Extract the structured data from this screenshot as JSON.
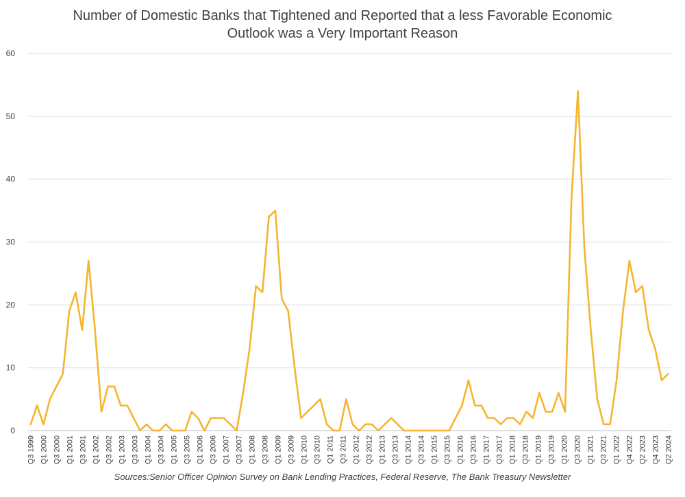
{
  "chart_data": {
    "type": "line",
    "title_line1": "Number of Domestic Banks that Tightened and Reported that a less Favorable Economic",
    "title_line2": "Outlook was a Very Important Reason",
    "source": "Sources:Senior Officer Opinion Survey on Bank Lending Practices, Federal Reserve, The Bank Treasury Newsletter",
    "ylim": [
      0,
      60
    ],
    "yticks": [
      0,
      10,
      20,
      30,
      40,
      50,
      60
    ],
    "grid": true,
    "series_color": "#F5B52E",
    "grid_color": "#d9d9d9",
    "xtick_labels": [
      "Q3 1999",
      "Q1 2000",
      "Q3 2000",
      "Q1 2001",
      "Q3 2001",
      "Q1 2002",
      "Q3 2002",
      "Q1 2003",
      "Q3 2003",
      "Q1 2004",
      "Q3 2004",
      "Q1 2005",
      "Q3 2005",
      "Q1 2006",
      "Q3 2006",
      "Q1 2007",
      "Q3 2007",
      "Q1 2008",
      "Q3 2008",
      "Q1 2009",
      "Q3 2009",
      "Q1 2010",
      "Q3 2010",
      "Q1 2011",
      "Q3 2011",
      "Q1 2012",
      "Q3 2012",
      "Q1 2013",
      "Q3 2013",
      "Q1 2014",
      "Q3 2014",
      "Q1 2015",
      "Q3 2015",
      "Q1 2016",
      "Q3 2016",
      "Q1 2017",
      "Q3 2017",
      "Q1 2018",
      "Q3 2018",
      "Q1 2019",
      "Q3 2019",
      "Q1 2020",
      "Q3 2020",
      "Q1 2021",
      "Q3 2021",
      "Q1 2022",
      "Q4 2022",
      "Q2 2023",
      "Q4 2023",
      "Q2 2024"
    ],
    "values": [
      1,
      4,
      1,
      5,
      7,
      9,
      19,
      22,
      16,
      27,
      16,
      3,
      7,
      7,
      4,
      4,
      2,
      0,
      1,
      0,
      0,
      1,
      0,
      0,
      0,
      3,
      2,
      0,
      2,
      2,
      2,
      1,
      0,
      6,
      13,
      23,
      22,
      34,
      35,
      21,
      19,
      10,
      2,
      3,
      4,
      5,
      1,
      0,
      0,
      5,
      1,
      0,
      1,
      1,
      0,
      1,
      2,
      1,
      0,
      0,
      0,
      0,
      0,
      0,
      0,
      0,
      2,
      4,
      8,
      4,
      4,
      2,
      2,
      1,
      2,
      2,
      1,
      3,
      2,
      6,
      3,
      3,
      6,
      3,
      37,
      54,
      29,
      16,
      5,
      1,
      1,
      8,
      19,
      27,
      22,
      23,
      16,
      13,
      8,
      9
    ]
  }
}
